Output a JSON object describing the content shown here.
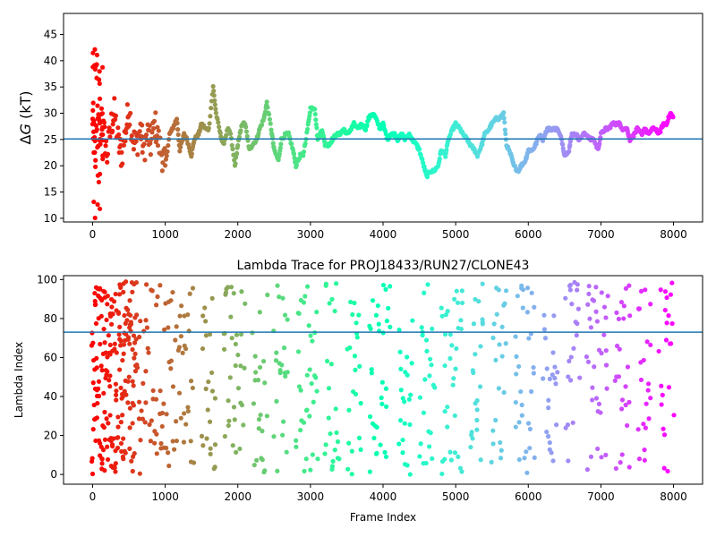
{
  "chart_data": [
    {
      "type": "scatter",
      "title": "",
      "xlabel": "",
      "ylabel": "ΔG (kT)",
      "ylabel_parts": {
        "delta": "Δ",
        "var": "G",
        "unit": " (kT)"
      },
      "xlim": [
        -400,
        8400
      ],
      "ylim": [
        9.3,
        49
      ],
      "xticks": [
        0,
        1000,
        2000,
        3000,
        4000,
        5000,
        6000,
        7000,
        8000
      ],
      "yticks": [
        10,
        15,
        20,
        25,
        30,
        35,
        40,
        45
      ],
      "hline": 25.1,
      "hline_color": "#1f77b4",
      "colormap": "rainbow (reversed over frame index: red at 0, violet at 8000)",
      "x_max": 8000,
      "series": [
        {
          "x": [
            0,
            40,
            100,
            160,
            200,
            260,
            300,
            360,
            400,
            460,
            500,
            560,
            600,
            660,
            700,
            760,
            800,
            860,
            900,
            960,
            1000,
            1060,
            1100,
            1160,
            1200,
            1260,
            1300,
            1360,
            1400,
            1460,
            1500,
            1560,
            1600,
            1660,
            1700,
            1760,
            1800,
            1860,
            1900,
            1960,
            2000,
            2060,
            2100,
            2160,
            2200,
            2260,
            2300,
            2360,
            2400,
            2460,
            2500,
            2560,
            2600,
            2660,
            2700,
            2760,
            2800,
            2860,
            2900,
            2960,
            3000,
            3060,
            3100,
            3160,
            3200,
            3260,
            3300,
            3360,
            3400,
            3460,
            3500,
            3560,
            3600,
            3660,
            3700,
            3760,
            3800,
            3860,
            3900,
            3960,
            4000,
            4060,
            4100,
            4160,
            4200,
            4260,
            4300,
            4360,
            4400,
            4460,
            4500,
            4560,
            4600,
            4660,
            4700,
            4760,
            4800,
            4860,
            4900,
            4960,
            5000,
            5060,
            5100,
            5160,
            5200,
            5260,
            5300,
            5360,
            5400,
            5460,
            5500,
            5560,
            5600,
            5660,
            5700,
            5760,
            5800,
            5860,
            5900,
            5960,
            6000,
            6060,
            6100,
            6160,
            6200,
            6260,
            6300,
            6360,
            6400,
            6460,
            6500,
            6560,
            6600,
            6660,
            6700,
            6760,
            6800,
            6860,
            6900,
            6960,
            7000,
            7060,
            7100,
            7160,
            7200,
            7260,
            7300,
            7360,
            7400,
            7460,
            7500,
            7560,
            7600,
            7660,
            7700,
            7760,
            7800,
            7860,
            7900,
            7960,
            8000
          ],
          "y": [
            27,
            23,
            31,
            26,
            22,
            28,
            30,
            24,
            22,
            27,
            31,
            25,
            24,
            27,
            23,
            26,
            24,
            28,
            25,
            22,
            20,
            26,
            27,
            29,
            23,
            26,
            25,
            22,
            25,
            26,
            28,
            27,
            27,
            35,
            30,
            26,
            24,
            27,
            26,
            20,
            24,
            28,
            28,
            23,
            24,
            25,
            27,
            29,
            32,
            27,
            23,
            21,
            25,
            26,
            26,
            23,
            20,
            22,
            22,
            27,
            31,
            31,
            25,
            27,
            24,
            24,
            25,
            26,
            26,
            27,
            26,
            27,
            28,
            27,
            28,
            27,
            29,
            30,
            29,
            27,
            28,
            25,
            26,
            26,
            25,
            26,
            25,
            26,
            25,
            24,
            23,
            20,
            18,
            19,
            19,
            20,
            23,
            22,
            25,
            27,
            28,
            27,
            26,
            25,
            24,
            23,
            22,
            24,
            26,
            27,
            28,
            29,
            29,
            30,
            24,
            22,
            20,
            19,
            20,
            21,
            23,
            23,
            24,
            26,
            25,
            27,
            27,
            27,
            27,
            25,
            22,
            23,
            26,
            26,
            25,
            26,
            26,
            25,
            25,
            23,
            26,
            27,
            27,
            28,
            28,
            28,
            27,
            27,
            25,
            26,
            27,
            26,
            27,
            26,
            27,
            27,
            26,
            28,
            28,
            30,
            29
          ]
        },
        {
          "x_range": [
            0,
            150
          ],
          "y_range": [
            10,
            44
          ],
          "note": "scattered early frames"
        }
      ]
    },
    {
      "type": "scatter",
      "title": "Lambda Trace for PROJ18433/RUN27/CLONE43",
      "xlabel": "Frame Index",
      "ylabel": "Lambda Index",
      "xlim": [
        -400,
        8400
      ],
      "ylim": [
        -5,
        102
      ],
      "xticks": [
        0,
        1000,
        2000,
        3000,
        4000,
        5000,
        6000,
        7000,
        8000
      ],
      "yticks": [
        0,
        20,
        40,
        60,
        80,
        100
      ],
      "hline": 73,
      "hline_color": "#1f77b4",
      "colormap": "rainbow (reversed over frame index: red at 0, violet at 8000)",
      "x_max": 8000,
      "lambda_max": 99
    }
  ]
}
